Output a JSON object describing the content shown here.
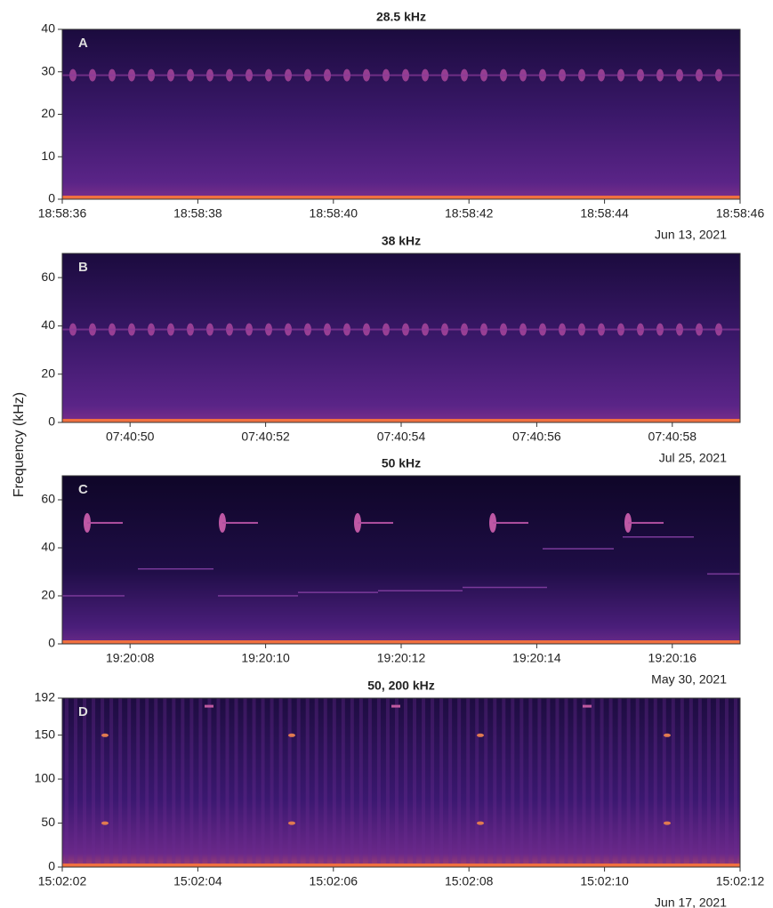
{
  "shared_ylabel": "Frequency (kHz)",
  "chart_data": [
    {
      "type": "spectrogram",
      "title": "28.5 kHz",
      "panel_label": "A",
      "date": "Jun 13, 2021",
      "xlim": [
        "18:58:36",
        "18:58:46"
      ],
      "xticks": [
        "18:58:36",
        "18:58:38",
        "18:58:40",
        "18:58:42",
        "18:58:44",
        "18:58:46"
      ],
      "ylim": [
        0,
        40
      ],
      "yticks": [
        0,
        10,
        20,
        30,
        40
      ]
    },
    {
      "type": "spectrogram",
      "title": "38 kHz",
      "panel_label": "B",
      "date": "Jul 25, 2021",
      "xlim": [
        "07:40:49",
        "07:40:59"
      ],
      "xticks": [
        "07:40:50",
        "07:40:52",
        "07:40:54",
        "07:40:56",
        "07:40:58"
      ],
      "ylim": [
        0,
        70
      ],
      "yticks": [
        0,
        20,
        40,
        60
      ]
    },
    {
      "type": "spectrogram",
      "title": "50 kHz",
      "panel_label": "C",
      "date": "May 30, 2021",
      "xlim": [
        "19:20:07",
        "19:20:17"
      ],
      "xticks": [
        "19:20:08",
        "19:20:10",
        "19:20:12",
        "19:20:14",
        "19:20:16"
      ],
      "ylim": [
        0,
        70
      ],
      "yticks": [
        0,
        20,
        40,
        60
      ]
    },
    {
      "type": "spectrogram",
      "title": "50, 200 kHz",
      "panel_label": "D",
      "date": "Jun 17, 2021",
      "xlim": [
        "15:02:02",
        "15:02:12"
      ],
      "xticks": [
        "15:02:02",
        "15:02:04",
        "15:02:06",
        "15:02:08",
        "15:02:10",
        "15:02:12"
      ],
      "ylim": [
        0,
        192
      ],
      "yticks": [
        0,
        50,
        100,
        150,
        192
      ]
    }
  ]
}
